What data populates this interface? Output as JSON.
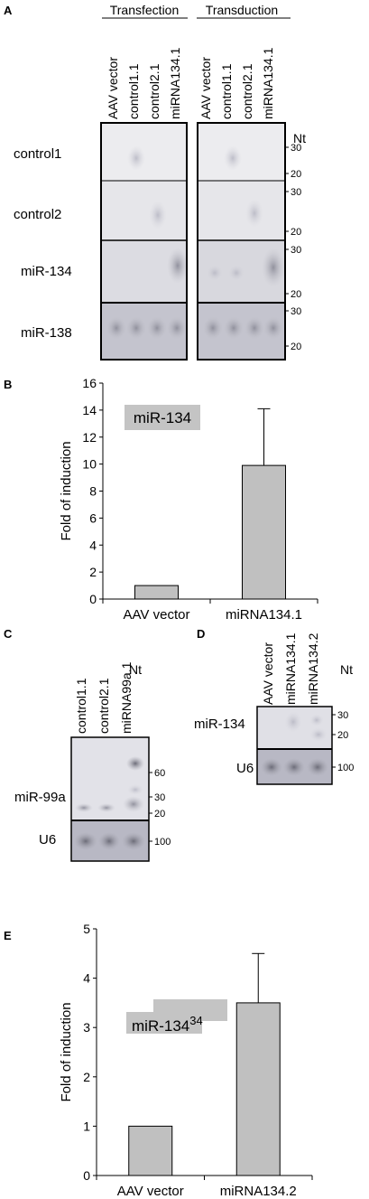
{
  "panel_letters": {
    "a": "A",
    "b": "B",
    "c": "C",
    "d": "D",
    "e": "E"
  },
  "blot_a": {
    "groups": [
      "Transfection",
      "Transduction"
    ],
    "lanes": [
      "AAV vector",
      "control1.1",
      "control2.1",
      "miRNA134.1"
    ],
    "rows": [
      "control1",
      "control2",
      "miR-134",
      "miR-138"
    ],
    "size_unit": "Nt",
    "markers": [
      "30",
      "20"
    ]
  },
  "blot_c": {
    "lanes": [
      "control1.1",
      "control2.1",
      "miRNA99a.1"
    ],
    "unit": "Nt",
    "row_top": "miR-99a",
    "row_bottom": "U6",
    "markers_top": [
      "60",
      "30",
      "20"
    ],
    "marker_bottom": "100"
  },
  "blot_d": {
    "lanes": [
      "AAV vector",
      "miRNA134.1",
      "miRNA134.2"
    ],
    "unit": "Nt",
    "row_top": "miR-134",
    "row_bottom": "U6",
    "markers_top": [
      "30",
      "20"
    ],
    "marker_bottom": "100"
  },
  "chart_data": [
    {
      "panel": "B",
      "type": "bar",
      "categories": [
        "AAV vector",
        "miRNA134.1"
      ],
      "values": [
        1,
        9.9
      ],
      "error_upper": [
        0,
        4.2
      ],
      "ylabel": "Fold of induction",
      "ylim": [
        0,
        16
      ],
      "yticks": [
        0,
        2,
        4,
        6,
        8,
        10,
        12,
        14,
        16
      ],
      "annotation": "miR-134",
      "bar_color": "#c0c0c0"
    },
    {
      "panel": "E",
      "type": "bar",
      "categories": [
        "AAV vector",
        "miRNA134.2"
      ],
      "values": [
        1,
        3.5
      ],
      "error_upper": [
        0,
        1.0
      ],
      "ylabel": "Fold of induction",
      "ylim": [
        0,
        5
      ],
      "yticks": [
        0,
        1,
        2,
        3,
        4,
        5
      ],
      "annotation": "miR-134",
      "annotation_sup": "34",
      "bar_color": "#c0c0c0"
    }
  ]
}
